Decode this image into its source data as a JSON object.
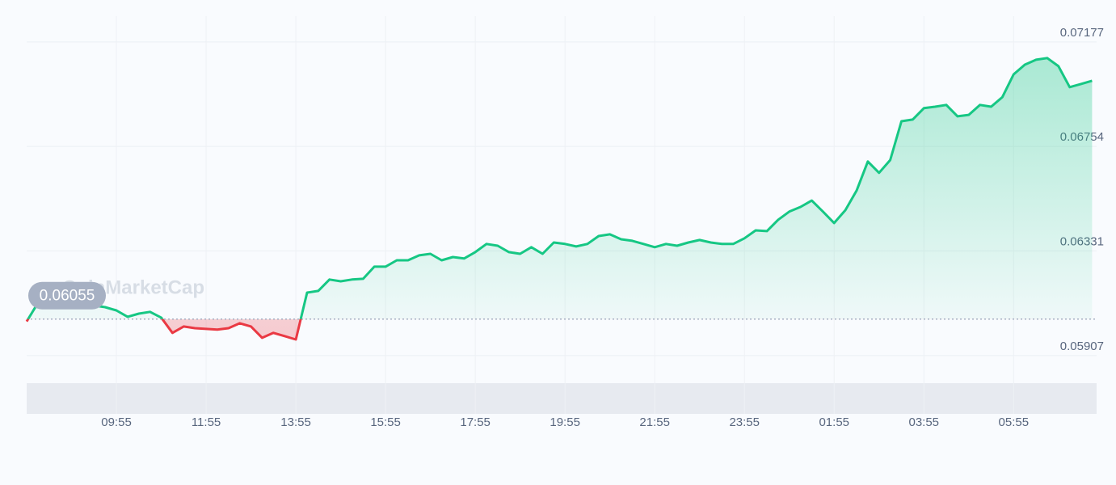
{
  "chart_data": {
    "type": "line",
    "watermark": "CoinMarketCap",
    "baseline": 0.06055,
    "values": [
      0.06045,
      0.0612,
      0.06162,
      0.06182,
      0.06175,
      0.06143,
      0.0611,
      0.06103,
      0.0609,
      0.06064,
      0.06077,
      0.06084,
      0.06061,
      0.05999,
      0.06025,
      0.06018,
      0.06015,
      0.06012,
      0.06018,
      0.06038,
      0.06025,
      0.05979,
      0.05999,
      0.05986,
      0.05972,
      0.06162,
      0.06169,
      0.06215,
      0.06208,
      0.06215,
      0.06218,
      0.06267,
      0.06267,
      0.06293,
      0.06293,
      0.06313,
      0.06319,
      0.06293,
      0.06306,
      0.063,
      0.06326,
      0.06359,
      0.06352,
      0.06326,
      0.06319,
      0.06346,
      0.06319,
      0.06365,
      0.06359,
      0.06349,
      0.06359,
      0.06391,
      0.06398,
      0.06378,
      0.06372,
      0.06359,
      0.06346,
      0.06359,
      0.06352,
      0.06365,
      0.06375,
      0.06365,
      0.06359,
      0.06359,
      0.06382,
      0.06414,
      0.06411,
      0.06457,
      0.0649,
      0.06509,
      0.06535,
      0.0649,
      0.06444,
      0.06496,
      0.06575,
      0.06693,
      0.06647,
      0.06699,
      0.06856,
      0.06863,
      0.06909,
      0.06915,
      0.06922,
      0.06876,
      0.06882,
      0.06922,
      0.06915,
      0.06954,
      0.07046,
      0.07085,
      0.07105,
      0.07112,
      0.07079,
      0.06994,
      0.07007,
      0.0702
    ],
    "up_color": "#16c784",
    "down_color": "#ea3943",
    "xlim": [
      0,
      95.4
    ],
    "xticks": [
      {
        "value": 8,
        "label": "09:55"
      },
      {
        "value": 16,
        "label": "11:55"
      },
      {
        "value": 24,
        "label": "13:55"
      },
      {
        "value": 32,
        "label": "15:55"
      },
      {
        "value": 40,
        "label": "17:55"
      },
      {
        "value": 48,
        "label": "19:55"
      },
      {
        "value": 56,
        "label": "21:55"
      },
      {
        "value": 64,
        "label": "23:55"
      },
      {
        "value": 72,
        "label": "01:55"
      },
      {
        "value": 80,
        "label": "03:55"
      },
      {
        "value": 88,
        "label": "05:55"
      }
    ],
    "ylim": [
      0.05671,
      0.07347
    ],
    "yticks": [
      0.07177,
      0.06754,
      0.06331,
      0.05907
    ],
    "grid": true
  }
}
